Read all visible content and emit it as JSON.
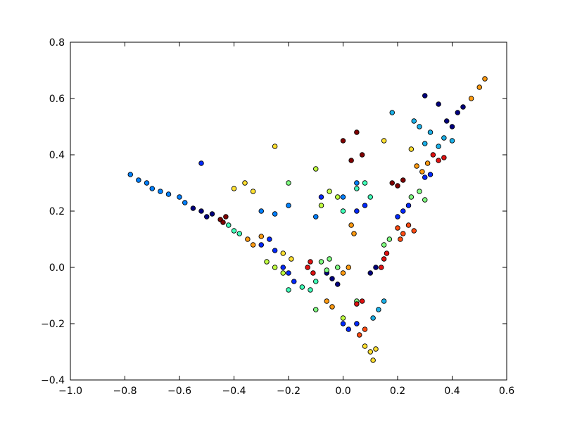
{
  "chart_data": {
    "type": "scatter",
    "xlim": [
      -1.0,
      0.6
    ],
    "ylim": [
      -0.4,
      0.8
    ],
    "xticks": [
      {
        "value": -1.0,
        "label": "−1.0"
      },
      {
        "value": -0.8,
        "label": "−0.8"
      },
      {
        "value": -0.6,
        "label": "−0.6"
      },
      {
        "value": -0.4,
        "label": "−0.4"
      },
      {
        "value": -0.2,
        "label": "−0.2"
      },
      {
        "value": 0,
        "label": "0.0"
      },
      0.2,
      0.4,
      0.6
    ],
    "yticks": [
      {
        "value": -0.4,
        "label": "−0.4"
      },
      {
        "value": -0.2,
        "label": "−0.2"
      },
      {
        "value": 0,
        "label": "0.0"
      },
      0.2,
      0.4,
      0.6,
      0.8
    ],
    "series": [
      {
        "color": "#00007f",
        "x": [
          -0.55,
          -0.52,
          -0.5,
          -0.48,
          -0.04,
          -0.02,
          -0.06,
          0.1,
          0.12,
          0.4,
          0.42,
          0.44,
          0.38,
          0.35,
          0.3
        ],
        "y": [
          0.21,
          0.2,
          0.18,
          0.19,
          -0.04,
          -0.06,
          -0.02,
          -0.02,
          0.0,
          0.5,
          0.55,
          0.57,
          0.52,
          0.58,
          0.61
        ]
      },
      {
        "color": "#0028ff",
        "x": [
          -0.3,
          -0.27,
          -0.25,
          -0.2,
          -0.18,
          -0.22,
          0.0,
          0.02,
          0.05,
          0.22,
          0.24,
          0.2,
          0.3,
          0.32,
          0.05,
          0.08,
          -0.52,
          -0.08
        ],
        "y": [
          0.08,
          0.1,
          0.06,
          -0.02,
          -0.05,
          0.0,
          -0.2,
          -0.22,
          -0.2,
          0.2,
          0.22,
          0.18,
          0.32,
          0.33,
          0.2,
          0.22,
          0.37,
          0.25
        ]
      },
      {
        "color": "#0080ff",
        "x": [
          -0.78,
          -0.75,
          -0.72,
          -0.7,
          -0.67,
          -0.64,
          -0.6,
          -0.58,
          -0.3,
          -0.25,
          -0.2,
          -0.1,
          0.0,
          0.05
        ],
        "y": [
          0.33,
          0.31,
          0.3,
          0.28,
          0.27,
          0.26,
          0.25,
          0.23,
          0.2,
          0.19,
          0.22,
          0.18,
          0.25,
          0.3
        ]
      },
      {
        "color": "#1ab0e8",
        "x": [
          0.3,
          0.32,
          0.35,
          0.37,
          0.4,
          0.28,
          0.26,
          0.13,
          0.15,
          0.11,
          0.18
        ],
        "y": [
          0.44,
          0.48,
          0.43,
          0.46,
          0.45,
          0.5,
          0.52,
          -0.15,
          -0.12,
          -0.18,
          0.55
        ]
      },
      {
        "color": "#40ffb8",
        "x": [
          -0.42,
          -0.4,
          -0.38,
          -0.15,
          -0.12,
          -0.1,
          0.05,
          0.08,
          0.1,
          0.0,
          -0.2
        ],
        "y": [
          0.15,
          0.13,
          0.12,
          -0.07,
          -0.08,
          -0.05,
          0.28,
          0.3,
          0.25,
          0.2,
          -0.08
        ]
      },
      {
        "color": "#80ff80",
        "x": [
          -0.08,
          -0.05,
          -0.02,
          -0.06,
          0.25,
          0.28,
          0.3,
          0.15,
          0.17,
          -0.1,
          -0.2,
          0.05
        ],
        "y": [
          0.02,
          0.03,
          0.0,
          -0.01,
          0.25,
          0.27,
          0.24,
          0.08,
          0.1,
          -0.15,
          0.3,
          -0.12
        ]
      },
      {
        "color": "#c0ff40",
        "x": [
          -0.28,
          -0.25,
          -0.22,
          -0.05,
          -0.02,
          -0.08,
          0.0,
          -0.1
        ],
        "y": [
          0.02,
          0.0,
          -0.02,
          0.27,
          0.25,
          0.22,
          -0.18,
          0.35
        ]
      },
      {
        "color": "#ffe030",
        "x": [
          -0.4,
          -0.36,
          -0.33,
          -0.25,
          -0.22,
          -0.19,
          0.08,
          0.1,
          0.11,
          0.12,
          0.25,
          0.15
        ],
        "y": [
          0.28,
          0.3,
          0.27,
          0.43,
          0.05,
          0.03,
          -0.28,
          -0.3,
          -0.33,
          -0.29,
          0.42,
          0.45
        ]
      },
      {
        "color": "#ff9a10",
        "x": [
          -0.35,
          -0.33,
          -0.3,
          0.02,
          0.0,
          0.03,
          -0.06,
          -0.04,
          0.27,
          0.29,
          0.31,
          0.47,
          0.5,
          0.52,
          0.04
        ],
        "y": [
          0.1,
          0.08,
          0.11,
          0.0,
          -0.02,
          0.15,
          -0.12,
          -0.14,
          0.36,
          0.34,
          0.37,
          0.6,
          0.64,
          0.67,
          0.12
        ]
      },
      {
        "color": "#ff4a10",
        "x": [
          0.2,
          0.22,
          0.24,
          0.21,
          0.08,
          0.06,
          0.26
        ],
        "y": [
          0.14,
          0.12,
          0.15,
          0.1,
          -0.22,
          -0.24,
          0.13
        ]
      },
      {
        "color": "#e01010",
        "x": [
          -0.13,
          -0.11,
          -0.12,
          0.15,
          0.14,
          0.16,
          0.35,
          0.37,
          0.33,
          0.05,
          0.07
        ],
        "y": [
          0.0,
          -0.02,
          0.02,
          0.03,
          0.0,
          0.05,
          0.38,
          0.39,
          0.4,
          -0.13,
          -0.12
        ]
      },
      {
        "color": "#800000",
        "x": [
          -0.45,
          -0.44,
          -0.43,
          0.18,
          0.2,
          0.22,
          0.0,
          0.05,
          0.07,
          0.03
        ],
        "y": [
          0.17,
          0.16,
          0.18,
          0.3,
          0.29,
          0.31,
          0.45,
          0.48,
          0.4,
          0.38
        ]
      }
    ]
  }
}
